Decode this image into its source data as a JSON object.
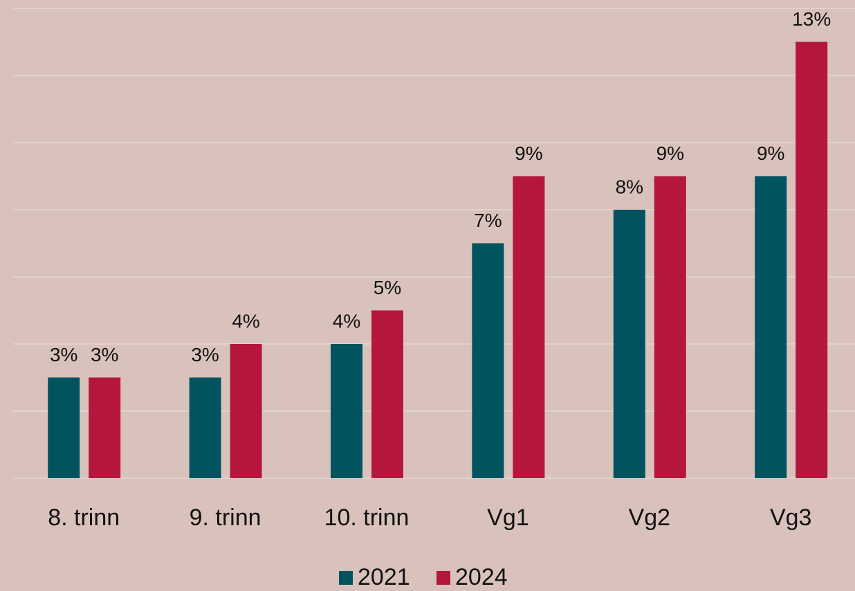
{
  "chart_data": {
    "type": "bar",
    "categories": [
      "8. trinn",
      "9. trinn",
      "10. trinn",
      "Vg1",
      "Vg2",
      "Vg3"
    ],
    "series": [
      {
        "name": "2021",
        "color": "#00535f",
        "values": [
          3,
          3,
          4,
          7,
          8,
          9
        ],
        "value_labels": [
          "3%",
          "3%",
          "4%",
          "7%",
          "8%",
          "9%"
        ]
      },
      {
        "name": "2024",
        "color": "#b5173c",
        "values": [
          3,
          4,
          5,
          9,
          9,
          13
        ],
        "value_labels": [
          "3%",
          "4%",
          "5%",
          "9%",
          "9%",
          "13%"
        ]
      }
    ],
    "ylim": [
      0,
      14
    ],
    "yticks": [
      0,
      2,
      4,
      6,
      8,
      10,
      12,
      14
    ],
    "grid": true,
    "legend": "bottom"
  }
}
